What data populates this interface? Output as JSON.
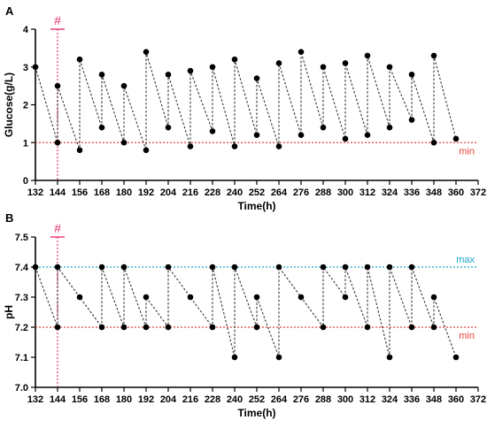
{
  "colors": {
    "axis": "#000000",
    "points": "#000000",
    "connector": "#333333",
    "min_line": "#e8433b",
    "max_line": "#1aa3c8",
    "hash_marker": "#e8336e"
  },
  "chart_data": [
    {
      "panel_letter": "A",
      "type": "scatter",
      "xlabel": "Time(h)",
      "ylabel": "Glucose(g/L)",
      "xlim": [
        132,
        372
      ],
      "ylim": [
        0,
        4
      ],
      "x_ticks": [
        132,
        144,
        156,
        168,
        180,
        192,
        204,
        216,
        228,
        240,
        252,
        264,
        276,
        288,
        300,
        312,
        324,
        336,
        348,
        360,
        372
      ],
      "y_ticks": [
        0,
        1,
        2,
        3,
        4
      ],
      "points": [
        {
          "x": 132,
          "y": 3.0
        },
        {
          "x": 144,
          "y": 1.0
        },
        {
          "x": 144,
          "y": 2.5
        },
        {
          "x": 156,
          "y": 0.8
        },
        {
          "x": 156,
          "y": 3.2
        },
        {
          "x": 168,
          "y": 1.4
        },
        {
          "x": 168,
          "y": 2.8
        },
        {
          "x": 180,
          "y": 1.0
        },
        {
          "x": 180,
          "y": 2.5
        },
        {
          "x": 192,
          "y": 0.8
        },
        {
          "x": 192,
          "y": 3.4
        },
        {
          "x": 204,
          "y": 1.4
        },
        {
          "x": 204,
          "y": 2.8
        },
        {
          "x": 216,
          "y": 0.9
        },
        {
          "x": 216,
          "y": 2.9
        },
        {
          "x": 228,
          "y": 1.3
        },
        {
          "x": 228,
          "y": 3.0
        },
        {
          "x": 240,
          "y": 0.9
        },
        {
          "x": 240,
          "y": 3.2
        },
        {
          "x": 252,
          "y": 1.2
        },
        {
          "x": 252,
          "y": 2.7
        },
        {
          "x": 264,
          "y": 0.9
        },
        {
          "x": 264,
          "y": 3.1
        },
        {
          "x": 276,
          "y": 1.2
        },
        {
          "x": 276,
          "y": 3.4
        },
        {
          "x": 288,
          "y": 1.4
        },
        {
          "x": 288,
          "y": 3.0
        },
        {
          "x": 300,
          "y": 1.1
        },
        {
          "x": 300,
          "y": 3.1
        },
        {
          "x": 312,
          "y": 1.2
        },
        {
          "x": 312,
          "y": 3.3
        },
        {
          "x": 324,
          "y": 1.4
        },
        {
          "x": 324,
          "y": 3.0
        },
        {
          "x": 336,
          "y": 1.6
        },
        {
          "x": 336,
          "y": 2.8
        },
        {
          "x": 348,
          "y": 1.0
        },
        {
          "x": 348,
          "y": 3.3
        },
        {
          "x": 360,
          "y": 1.1
        }
      ],
      "reference_lines": [
        {
          "label": "min",
          "value": 1.0,
          "color_key": "min_line"
        }
      ],
      "marker": {
        "label": "#",
        "x": 144,
        "top": 4.0
      }
    },
    {
      "panel_letter": "B",
      "type": "scatter",
      "xlabel": "Time(h)",
      "ylabel": "pH",
      "xlim": [
        132,
        372
      ],
      "ylim": [
        7.0,
        7.5
      ],
      "x_ticks": [
        132,
        144,
        156,
        168,
        180,
        192,
        204,
        216,
        228,
        240,
        252,
        264,
        276,
        288,
        300,
        312,
        324,
        336,
        348,
        360,
        372
      ],
      "y_ticks": [
        7.0,
        7.1,
        7.2,
        7.3,
        7.4,
        7.5
      ],
      "y_tick_labels": [
        "7.0",
        "7.1",
        "7.2",
        "7.3",
        "7.4",
        "7.5"
      ],
      "points": [
        {
          "x": 132,
          "y": 7.4
        },
        {
          "x": 144,
          "y": 7.2
        },
        {
          "x": 144,
          "y": 7.4
        },
        {
          "x": 156,
          "y": 7.3
        },
        {
          "x": 168,
          "y": 7.2
        },
        {
          "x": 168,
          "y": 7.4
        },
        {
          "x": 180,
          "y": 7.2
        },
        {
          "x": 180,
          "y": 7.4
        },
        {
          "x": 192,
          "y": 7.2
        },
        {
          "x": 192,
          "y": 7.3
        },
        {
          "x": 204,
          "y": 7.2
        },
        {
          "x": 204,
          "y": 7.4
        },
        {
          "x": 216,
          "y": 7.3
        },
        {
          "x": 228,
          "y": 7.2
        },
        {
          "x": 228,
          "y": 7.4
        },
        {
          "x": 240,
          "y": 7.1
        },
        {
          "x": 240,
          "y": 7.4
        },
        {
          "x": 252,
          "y": 7.2
        },
        {
          "x": 252,
          "y": 7.3
        },
        {
          "x": 264,
          "y": 7.1
        },
        {
          "x": 264,
          "y": 7.4
        },
        {
          "x": 276,
          "y": 7.3
        },
        {
          "x": 288,
          "y": 7.2
        },
        {
          "x": 288,
          "y": 7.4
        },
        {
          "x": 300,
          "y": 7.3
        },
        {
          "x": 300,
          "y": 7.4
        },
        {
          "x": 312,
          "y": 7.2
        },
        {
          "x": 312,
          "y": 7.4
        },
        {
          "x": 324,
          "y": 7.1
        },
        {
          "x": 324,
          "y": 7.4
        },
        {
          "x": 336,
          "y": 7.2
        },
        {
          "x": 336,
          "y": 7.4
        },
        {
          "x": 348,
          "y": 7.2
        },
        {
          "x": 348,
          "y": 7.3
        },
        {
          "x": 360,
          "y": 7.1
        }
      ],
      "reference_lines": [
        {
          "label": "max",
          "value": 7.4,
          "color_key": "max_line"
        },
        {
          "label": "min",
          "value": 7.2,
          "color_key": "min_line"
        }
      ],
      "marker": {
        "label": "#",
        "x": 144,
        "top": 7.5
      }
    }
  ]
}
